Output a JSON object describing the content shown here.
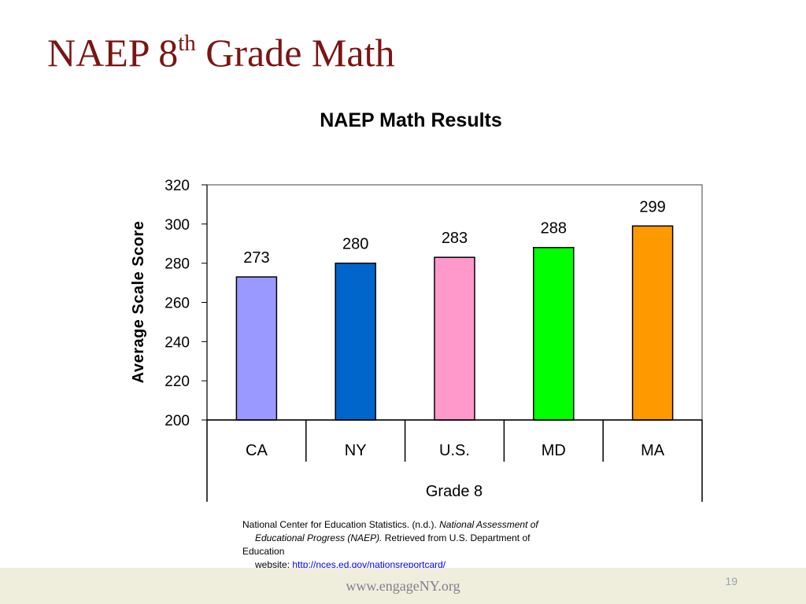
{
  "slide": {
    "title_prefix": "NAEP 8",
    "title_superscript": "th",
    "title_suffix": " Grade Math"
  },
  "chart_data": {
    "type": "bar",
    "title": "NAEP Math Results",
    "ylabel": "Average Scale Score",
    "group_label": "Grade 8",
    "categories": [
      "CA",
      "NY",
      "U.S.",
      "MD",
      "MA"
    ],
    "values": [
      273,
      280,
      283,
      288,
      299
    ],
    "colors": [
      "#9999ff",
      "#0066cc",
      "#ff99cc",
      "#00ff00",
      "#ff9900"
    ],
    "ylim": [
      200,
      320
    ],
    "yticks": [
      200,
      220,
      240,
      260,
      280,
      300,
      320
    ],
    "data_labels": true,
    "grid": false,
    "legend": "none"
  },
  "citation": {
    "line1_plain": "National Center for Education Statistics. (n.d.). ",
    "line1_italic": "National Assessment of",
    "line2_italic": "Educational Progress (NAEP).",
    "line2_plain": " Retrieved from U.S. Department of",
    "line3": "Education",
    "website_prefix": "website: ",
    "link_text": "http://nces.ed.gov/nationsreportcard/"
  },
  "footer": {
    "url": "www.engageNY.org",
    "page_number": "19"
  }
}
